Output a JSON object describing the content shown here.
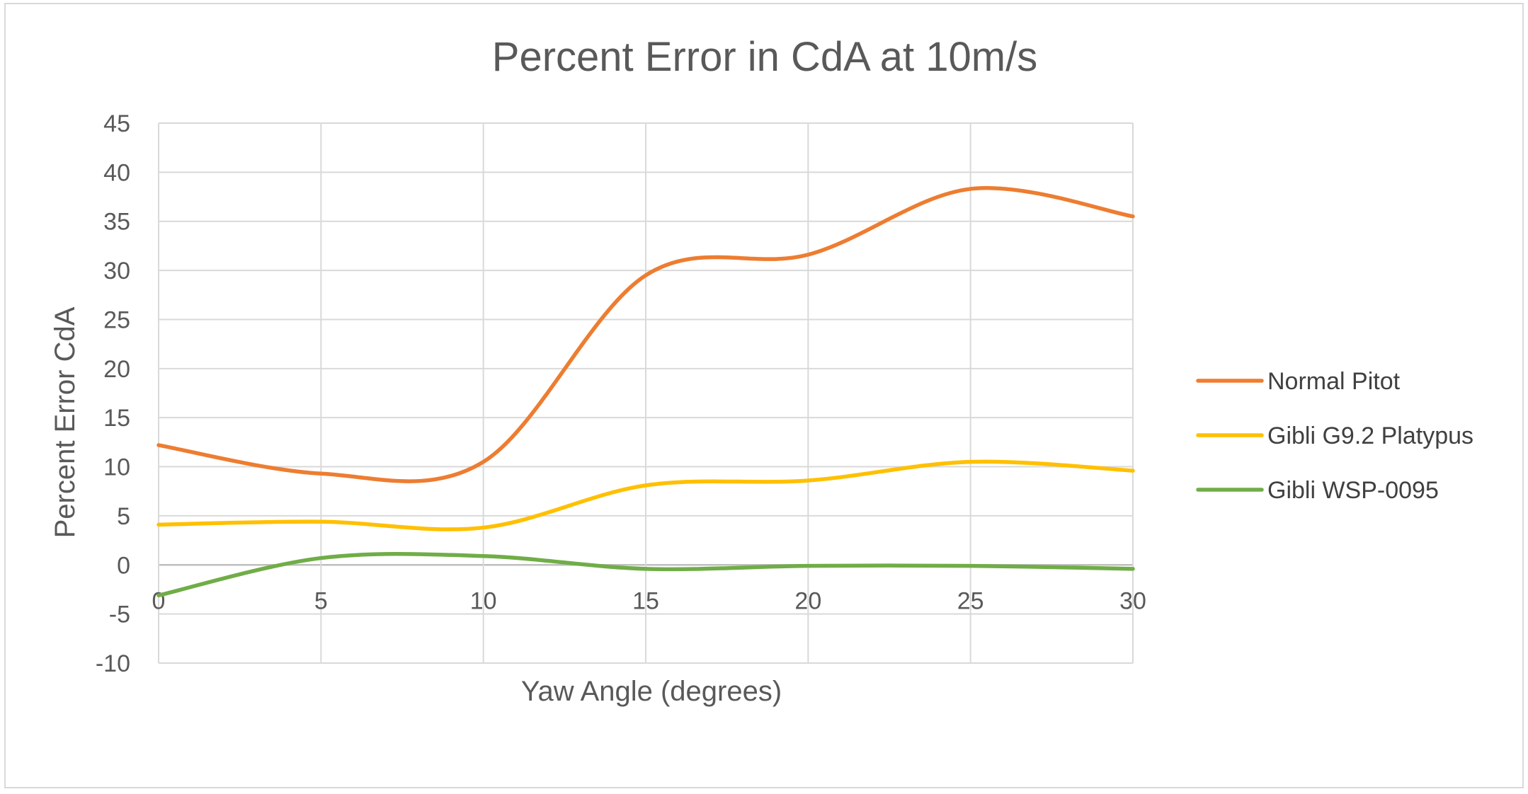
{
  "chart_data": {
    "type": "line",
    "title": "Percent Error in CdA at 10m/s",
    "xlabel": "Yaw Angle (degrees)",
    "ylabel": "Percent Error CdA",
    "xlim": [
      0,
      30
    ],
    "ylim": [
      -10,
      45
    ],
    "x_ticks": [
      "0",
      "5",
      "10",
      "15",
      "20",
      "25",
      "30"
    ],
    "y_ticks": [
      "45",
      "40",
      "35",
      "30",
      "25",
      "20",
      "15",
      "10",
      "5",
      "0",
      "-5",
      "-10"
    ],
    "grid": true,
    "smooth": true,
    "legend_position": "right",
    "x": [
      0,
      5,
      10,
      15,
      20,
      25,
      30
    ],
    "series": [
      {
        "name": "Normal Pitot",
        "color": "#ed7d31",
        "values": [
          12.2,
          9.3,
          10.5,
          29.5,
          31.6,
          38.3,
          35.5
        ]
      },
      {
        "name": "Gibli G9.2 Platypus",
        "color": "#ffc000",
        "values": [
          4.1,
          4.4,
          3.8,
          8.1,
          8.6,
          10.5,
          9.6
        ]
      },
      {
        "name": "Gibli WSP-0095",
        "color": "#70ad47",
        "values": [
          -3.1,
          0.7,
          0.9,
          -0.4,
          -0.1,
          -0.1,
          -0.4
        ]
      }
    ]
  }
}
